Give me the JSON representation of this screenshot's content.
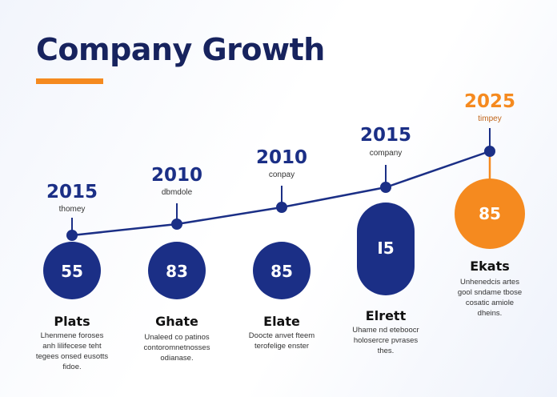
{
  "title": "Company Growth",
  "colors": {
    "primary": "#1b2f86",
    "accent": "#f58a1f",
    "title": "#17235e"
  },
  "milestones": [
    {
      "year": "2015",
      "sub": "thomey",
      "value": "55",
      "label": "Plats",
      "desc": [
        "Lhenmene foroses",
        "anh lilifecese teht",
        "tegees onsed eusotts",
        "fidoe."
      ]
    },
    {
      "year": "2010",
      "sub": "dbmdole",
      "value": "83",
      "label": "Ghate",
      "desc": [
        "Unaleed co patinos",
        "contoromnetnosses",
        "odianase."
      ]
    },
    {
      "year": "2010",
      "sub": "conpay",
      "value": "85",
      "label": "Elate",
      "desc": [
        "Doocte anvet fteem",
        "terofelige enster"
      ]
    },
    {
      "year": "2015",
      "sub": "company",
      "value": "I5",
      "label": "Elrett",
      "desc": [
        "Uhame nd eteboocr",
        "holosercre pvrases",
        "thes."
      ]
    },
    {
      "year": "2025",
      "sub": "timpey",
      "value": "85",
      "label": "Ekats",
      "desc": [
        "Unhenedcis artes",
        "gool sndame tbose",
        "cosatic amiole",
        "dheins."
      ],
      "highlight": true
    }
  ]
}
